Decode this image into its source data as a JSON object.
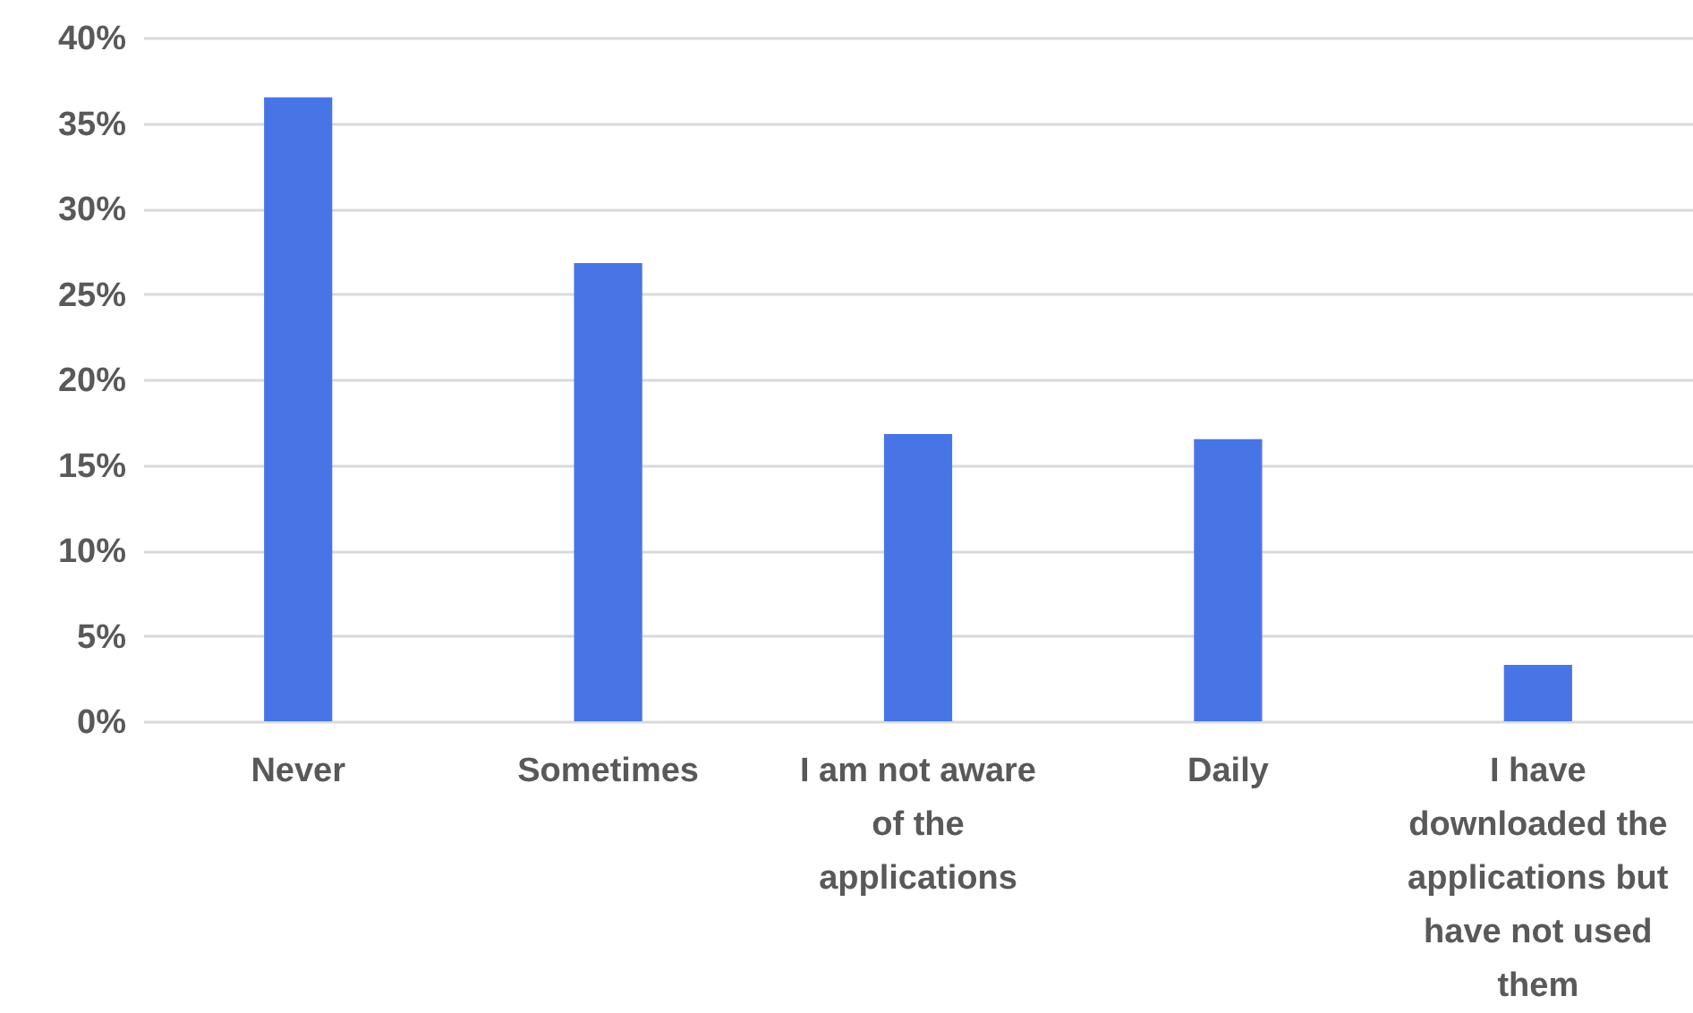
{
  "chart_data": {
    "type": "bar",
    "categories": [
      "Never",
      "Sometimes",
      "I am not aware of the applications",
      "Daily",
      "I have downloaded the applications but have not used them"
    ],
    "values": [
      36.5,
      26.8,
      16.8,
      16.5,
      3.3
    ],
    "color": "#4875e6",
    "ylim": [
      0,
      40
    ],
    "yticks": [
      {
        "value": 0,
        "label": "0%"
      },
      {
        "value": 5,
        "label": "5%"
      },
      {
        "value": 10,
        "label": "10%"
      },
      {
        "value": 15,
        "label": "15%"
      },
      {
        "value": 20,
        "label": "20%"
      },
      {
        "value": 25,
        "label": "25%"
      },
      {
        "value": 30,
        "label": "30%"
      },
      {
        "value": 35,
        "label": "35%"
      },
      {
        "value": 40,
        "label": "40%"
      }
    ],
    "grid": "y"
  }
}
